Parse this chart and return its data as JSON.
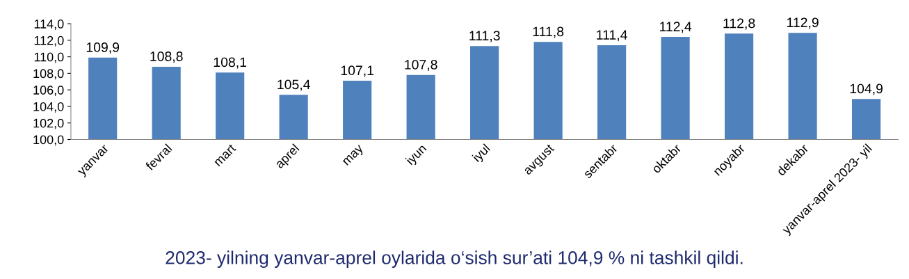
{
  "chart_data": {
    "type": "bar",
    "categories": [
      "yanvar",
      "fevral",
      "mart",
      "aprel",
      "may",
      "iyun",
      "iyul",
      "avgust",
      "sentabr",
      "oktabr",
      "noyabr",
      "dekabr",
      "yanvar-aprel 2023- yil"
    ],
    "values": [
      109.9,
      108.8,
      108.1,
      105.4,
      107.1,
      107.8,
      111.3,
      111.8,
      111.4,
      112.4,
      112.8,
      112.9,
      104.9
    ],
    "value_labels": [
      "109,9",
      "108,8",
      "108,1",
      "105,4",
      "107,1",
      "107,8",
      "111,3",
      "111,8",
      "111,4",
      "112,4",
      "112,8",
      "112,9",
      "104,9"
    ],
    "color": "#4f81bd",
    "ylim": [
      100,
      114
    ],
    "yticks": [
      {
        "value": 100,
        "label": "100,0"
      },
      {
        "value": 102,
        "label": "102,0"
      },
      {
        "value": 104,
        "label": "104,0"
      },
      {
        "value": 106,
        "label": "106,0"
      },
      {
        "value": 108,
        "label": "108,0"
      },
      {
        "value": 110,
        "label": "110,0"
      },
      {
        "value": 112,
        "label": "112,0"
      },
      {
        "value": 114,
        "label": "114,0"
      }
    ],
    "grid": false,
    "annotations": [
      "2023- yilning yanvar-aprel oylarida o‘sish sur’ati 104,9 % ni tashkil qildi."
    ]
  }
}
